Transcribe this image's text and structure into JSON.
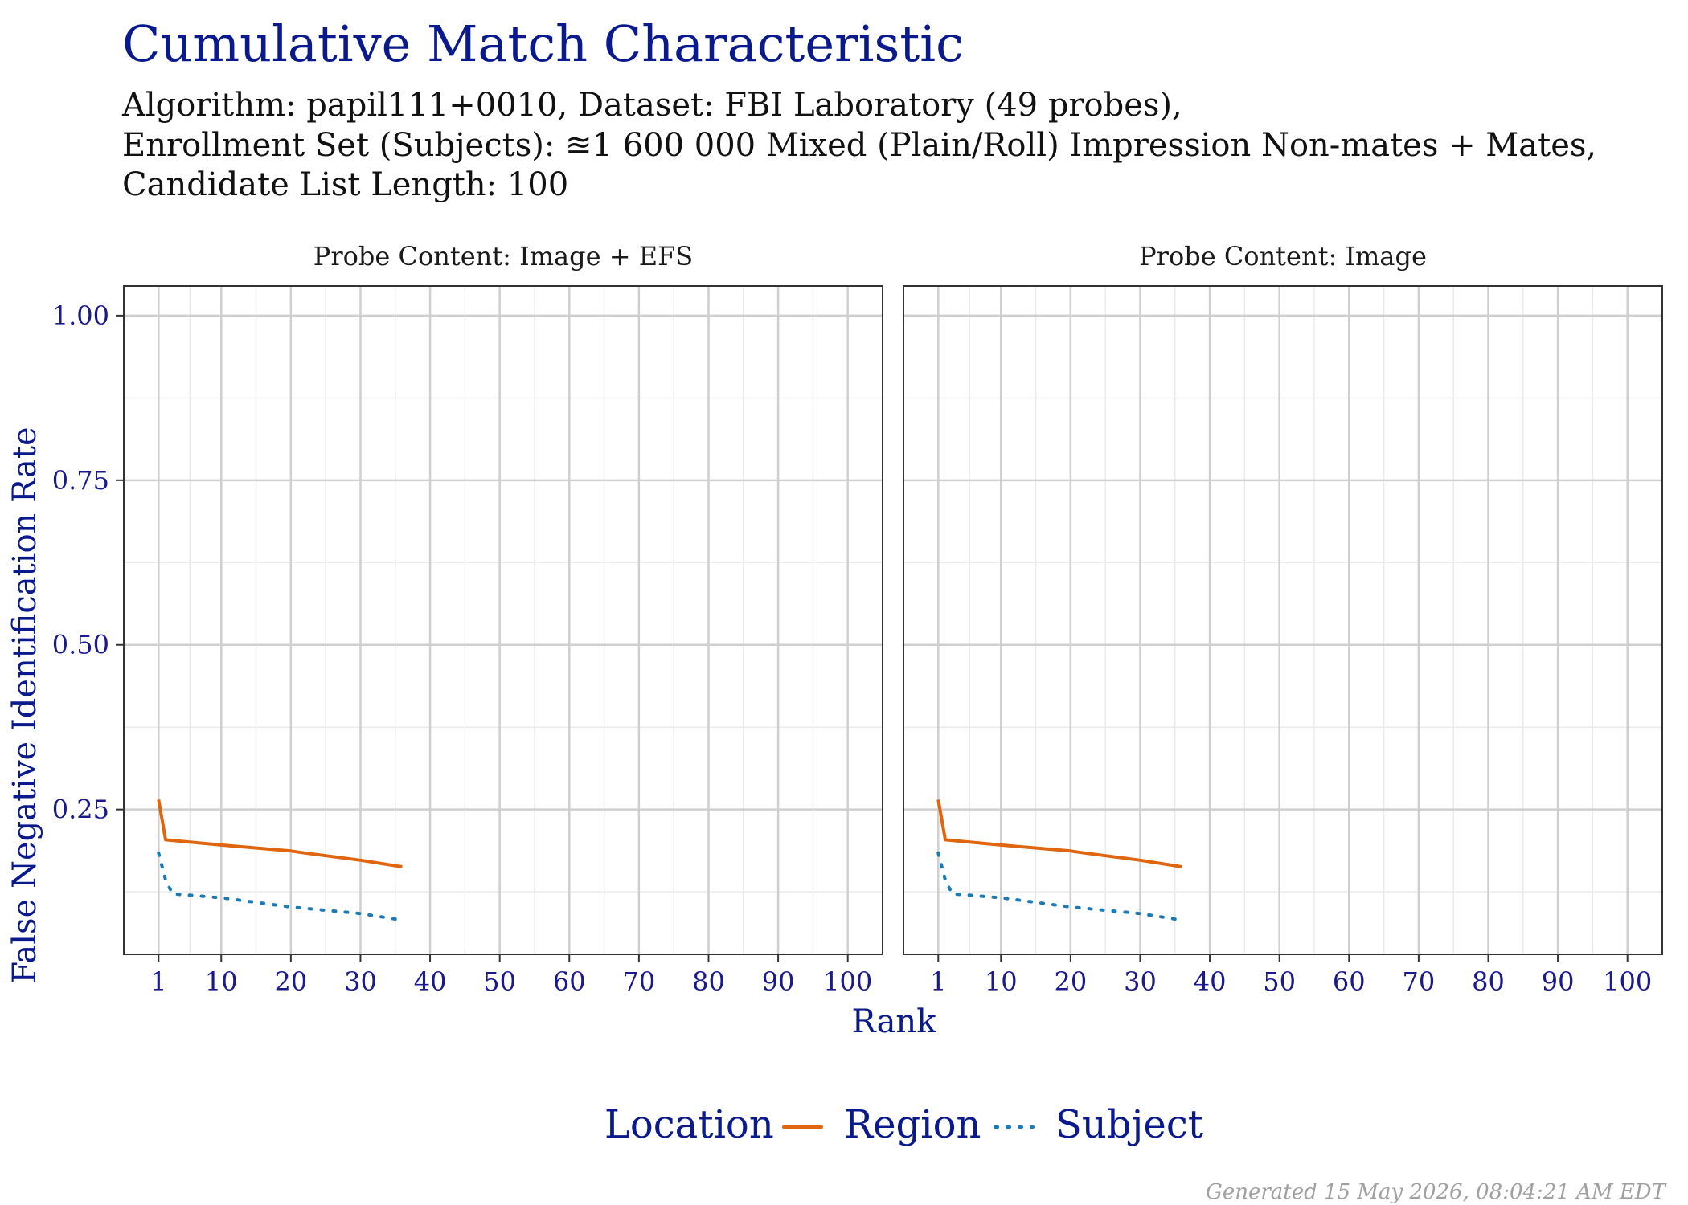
{
  "chart_data": {
    "type": "line",
    "title": "Cumulative Match Characteristic",
    "subtitle_lines": [
      "Algorithm: papil111+0010, Dataset: FBI Laboratory (49 probes),",
      "Enrollment Set (Subjects): ≊1 600 000 Mixed (Plain/Roll) Impression Non-mates + Mates,",
      "Candidate List Length: 100"
    ],
    "xlabel": "Rank",
    "ylabel": "False Negative Identification Rate",
    "xlim": [
      -4,
      105
    ],
    "ylim": [
      0.03,
      1.045
    ],
    "x_ticks": [
      1,
      10,
      20,
      30,
      40,
      50,
      60,
      70,
      80,
      90,
      100
    ],
    "y_ticks": [
      1.0,
      0.75,
      0.5,
      0.25
    ],
    "y_tick_labels": [
      "1.00",
      "0.75",
      "0.50",
      "0.25"
    ],
    "grid": true,
    "legend_title": "Location",
    "legend_position": "bottom",
    "series_styles": [
      {
        "name": "Region",
        "color": "#e0650f",
        "dash": "solid"
      },
      {
        "name": "Subject",
        "color": "#1a7ab8",
        "dash": "dotted"
      }
    ],
    "panels": [
      {
        "strip": "Probe Content: Image + EFS",
        "series": [
          {
            "name": "Region",
            "x": [
              1,
              2,
              10,
              20,
              22,
              30,
              36
            ],
            "y": [
              0.265,
              0.204,
              0.196,
              0.187,
              0.184,
              0.173,
              0.163
            ]
          },
          {
            "name": "Subject",
            "x": [
              1,
              2,
              3,
              10,
              20,
              30,
              36
            ],
            "y": [
              0.184,
              0.143,
              0.122,
              0.116,
              0.102,
              0.092,
              0.082
            ]
          }
        ]
      },
      {
        "strip": "Probe Content: Image",
        "series": [
          {
            "name": "Region",
            "x": [
              1,
              2,
              10,
              20,
              22,
              30,
              36
            ],
            "y": [
              0.265,
              0.204,
              0.196,
              0.187,
              0.184,
              0.173,
              0.163
            ]
          },
          {
            "name": "Subject",
            "x": [
              1,
              2,
              3,
              10,
              20,
              30,
              36
            ],
            "y": [
              0.184,
              0.143,
              0.122,
              0.116,
              0.102,
              0.092,
              0.082
            ]
          }
        ]
      }
    ]
  },
  "footer": "Generated 15 May 2026, 08:04:21 AM EDT"
}
